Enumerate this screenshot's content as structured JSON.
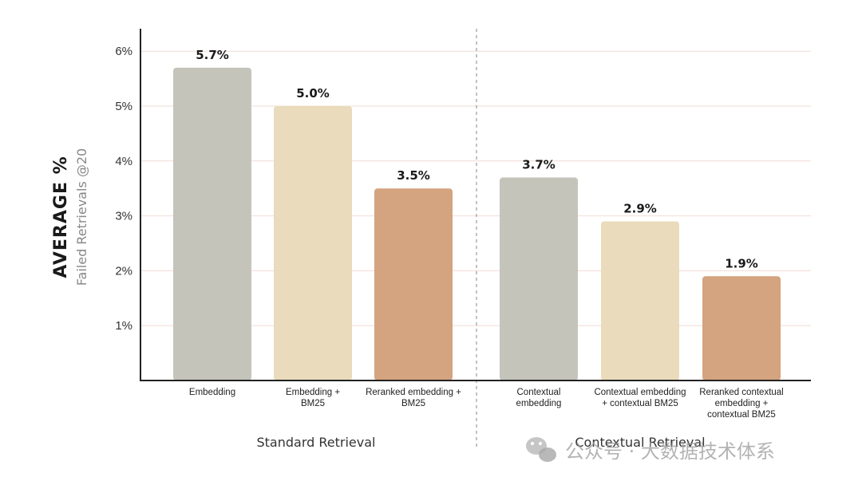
{
  "chart_data": {
    "type": "bar",
    "ylabel_title": "AVERAGE %",
    "ylabel_subtitle": "Failed Retrievals @20",
    "yticks": [
      "1%",
      "2%",
      "3%",
      "4%",
      "5%",
      "6%"
    ],
    "ylim": [
      0,
      6.3
    ],
    "grid": true,
    "groups": [
      {
        "label": "Standard Retrieval",
        "bars": [
          {
            "label": [
              "Embedding"
            ],
            "value": 5.7,
            "value_label": "5.7%",
            "color": "#c4c4bb"
          },
          {
            "label": [
              "Embedding +",
              "BM25"
            ],
            "value": 5.0,
            "value_label": "5.0%",
            "color": "#e9dbbb"
          },
          {
            "label": [
              "Reranked embedding +",
              "BM25"
            ],
            "value": 3.5,
            "value_label": "3.5%",
            "color": "#d4a37f"
          }
        ]
      },
      {
        "label": "Contextual Retrieval",
        "bars": [
          {
            "label": [
              "Contextual",
              "embedding"
            ],
            "value": 3.7,
            "value_label": "3.7%",
            "color": "#c4c4bb"
          },
          {
            "label": [
              "Contextual embedding",
              "+ contextual BM25"
            ],
            "value": 2.9,
            "value_label": "2.9%",
            "color": "#e9dbbb"
          },
          {
            "label": [
              "Reranked contextual",
              "embedding +",
              "contextual BM25"
            ],
            "value": 1.9,
            "value_label": "1.9%",
            "color": "#d4a37f"
          }
        ]
      }
    ],
    "colors": {
      "grid": "#f2dcd5",
      "axis": "#222222",
      "divider": "#9a9a9a"
    }
  },
  "watermark": {
    "text": "公众号 · 大数据技术体系",
    "icon": "wechat-icon"
  }
}
